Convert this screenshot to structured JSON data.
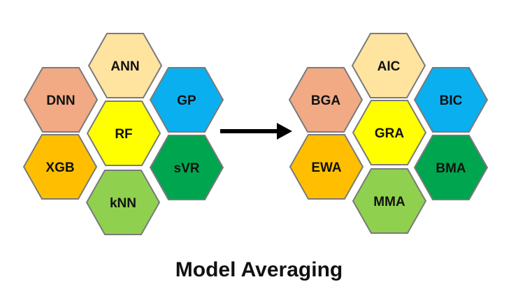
{
  "left_cluster": {
    "hexes": [
      {
        "id": "ann",
        "label": "ANN",
        "color": "#FFE4A0"
      },
      {
        "id": "dnn",
        "label": "DNN",
        "color": "#F2AA84"
      },
      {
        "id": "gp",
        "label": "GP",
        "color": "#0AAFF0"
      },
      {
        "id": "rf",
        "label": "RF",
        "color": "#FFFF00"
      },
      {
        "id": "xgb",
        "label": "XGB",
        "color": "#FFBF00"
      },
      {
        "id": "svr",
        "label": "sVR",
        "color": "#00A550"
      },
      {
        "id": "knn",
        "label": "kNN",
        "color": "#8FD14F"
      }
    ]
  },
  "right_cluster": {
    "hexes": [
      {
        "id": "aic",
        "label": "AIC",
        "color": "#FFE4A0"
      },
      {
        "id": "bga",
        "label": "BGA",
        "color": "#F2AA84"
      },
      {
        "id": "bic",
        "label": "BIC",
        "color": "#0AAFF0"
      },
      {
        "id": "gra",
        "label": "GRA",
        "color": "#FFFF00"
      },
      {
        "id": "ewa",
        "label": "EWA",
        "color": "#FFBF00"
      },
      {
        "id": "bma",
        "label": "BMA",
        "color": "#00A550"
      },
      {
        "id": "mma",
        "label": "MMA",
        "color": "#8FD14F"
      }
    ]
  },
  "caption": "Model Averaging",
  "arrow_color": "#000000"
}
